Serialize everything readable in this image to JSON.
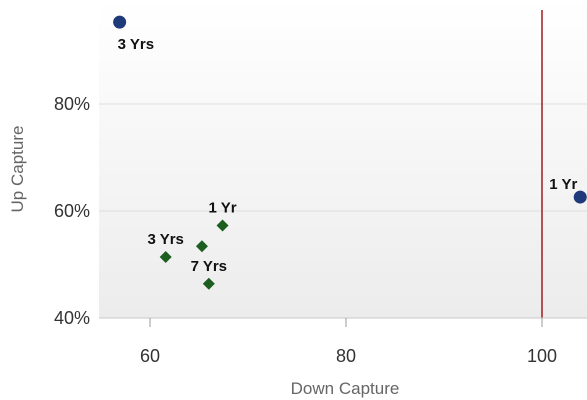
{
  "chart_data": {
    "type": "scatter",
    "xlabel": "Down Capture",
    "ylabel": "Up Capture",
    "xlim": [
      52,
      105
    ],
    "ylim": [
      40,
      96
    ],
    "x_ticks": [
      {
        "value": 60,
        "label": "60"
      },
      {
        "value": 80,
        "label": "80"
      },
      {
        "value": 100,
        "label": "100"
      }
    ],
    "y_ticks": [
      {
        "value": 40,
        "label": "40%"
      },
      {
        "value": 60,
        "label": "60%"
      },
      {
        "value": 80,
        "label": "80%"
      }
    ],
    "reference_line": {
      "axis": "x",
      "value": 100,
      "color": "#a52a2a"
    },
    "grid": true,
    "background_color": "#f2f2f2",
    "series": [
      {
        "marker": "circle",
        "color": "#1f3a7a",
        "points": [
          {
            "x": 56.9,
            "y": 95.3,
            "label": "3 Yrs"
          },
          {
            "x": 103.9,
            "y": 62.6,
            "label": "1 Yr"
          }
        ]
      },
      {
        "marker": "diamond",
        "color": "#1b5e20",
        "points": [
          {
            "x": 67.4,
            "y": 57.3,
            "label": "1 Yr"
          },
          {
            "x": 61.6,
            "y": 51.4,
            "label": "3 Yrs"
          },
          {
            "x": 65.3,
            "y": 53.4,
            "label": ""
          },
          {
            "x": 66.0,
            "y": 46.4,
            "label": "7 Yrs"
          }
        ]
      }
    ]
  }
}
